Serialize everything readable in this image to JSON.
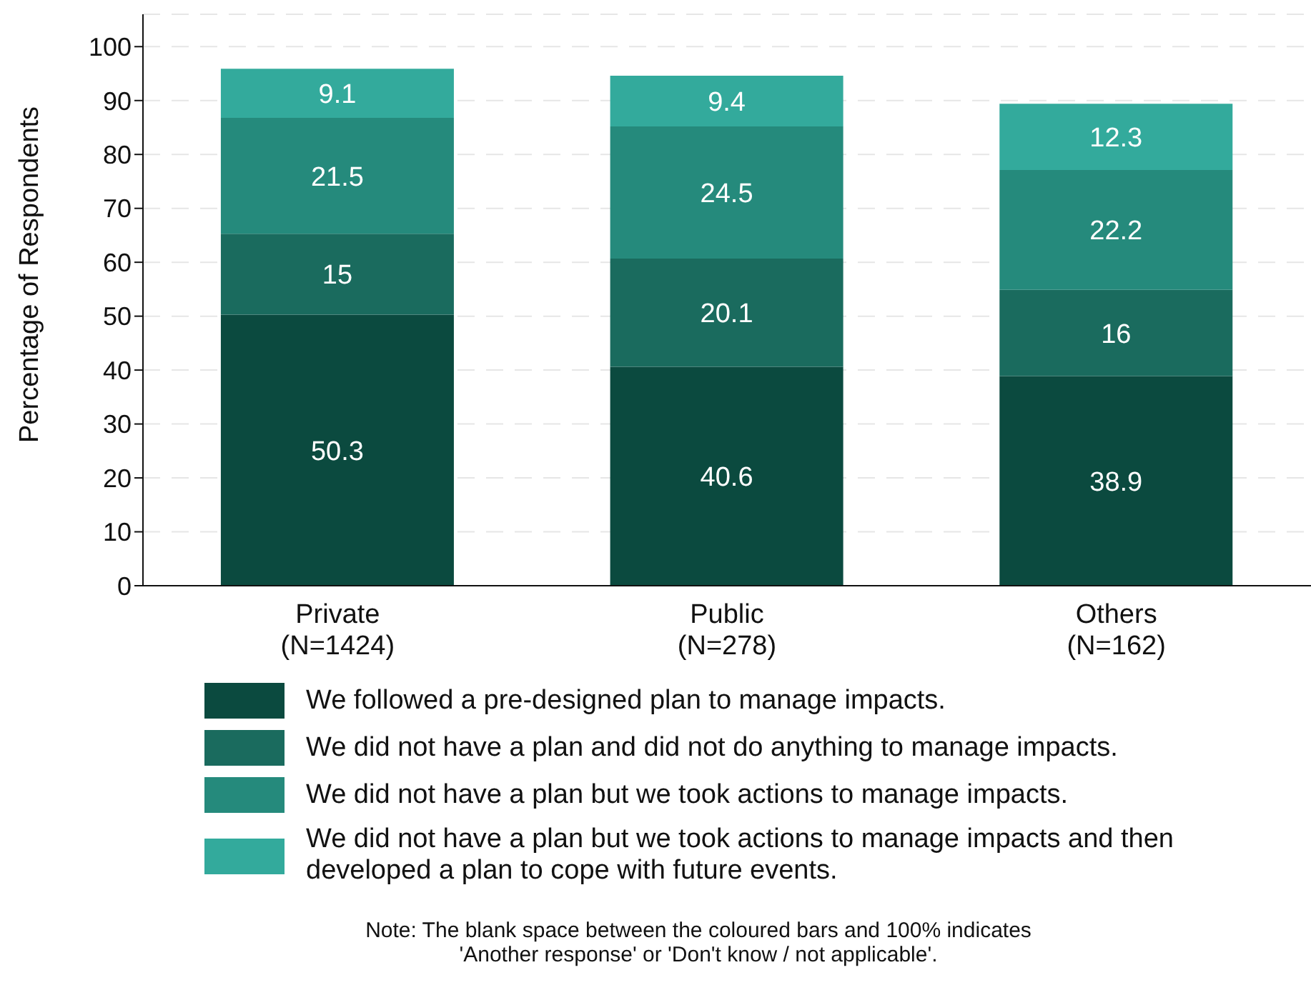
{
  "chart_data": {
    "type": "bar",
    "stacked": true,
    "categories": [
      "Private\n(N=1424)",
      "Public\n(N=278)",
      "Others\n(N=162)"
    ],
    "series": [
      {
        "name": "We followed a pre-designed plan to manage impacts.",
        "color": "#0b4a3f",
        "values": [
          50.3,
          40.6,
          38.9
        ]
      },
      {
        "name": "We did not have a plan and did not do anything to manage impacts.",
        "color": "#1a6b5e",
        "values": [
          15,
          20.1,
          16
        ]
      },
      {
        "name": "We did not have a plan but we took actions to manage impacts.",
        "color": "#258a7c",
        "values": [
          21.5,
          24.5,
          22.2
        ]
      },
      {
        "name": "We did not have a plan but we took actions to manage impacts and then developed a plan to cope with future events.",
        "color": "#33aa9c",
        "values": [
          9.1,
          9.4,
          12.3
        ]
      }
    ],
    "ylabel": "Percentage of Respondents",
    "ylim": [
      0,
      106
    ],
    "yticks": [
      0,
      10,
      20,
      30,
      40,
      50,
      60,
      70,
      80,
      90,
      100
    ],
    "grid": "y",
    "legend": "bottom",
    "data_labels": true,
    "annotations": [
      "Note: The blank space between the coloured bars and 100% indicates 'Another response' or 'Don't know / not applicable'."
    ]
  }
}
